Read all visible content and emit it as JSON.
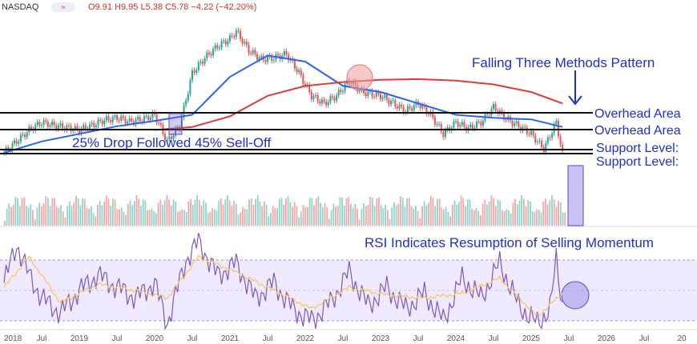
{
  "header": {
    "symbol": "NASDAQ",
    "interval_icon": "≈",
    "ohlc": {
      "open": "9.91",
      "high": "9.95",
      "low": "5.38",
      "close": "5.78",
      "change": "−4.22 (−42.20%)"
    }
  },
  "chart_data": [
    {
      "type": "candlestick",
      "title": "",
      "x_ticks": [
        "2018",
        "Jul",
        "2019",
        "Jul",
        "2020",
        "Jul",
        "2021",
        "Jul",
        "2022",
        "Jul",
        "2023",
        "Jul",
        "2024",
        "Jul",
        "2025",
        "Jul",
        "2026",
        "Jul",
        "20"
      ],
      "series": [
        {
          "values": [
            [
              "2018-01",
              6.0
            ],
            [
              "2018-03",
              7.5
            ],
            [
              "2018-05",
              9.0
            ],
            [
              "2018-07",
              10.0
            ],
            [
              "2018-09",
              9.6
            ],
            [
              "2018-11",
              9.3
            ],
            [
              "2019-01",
              9.0
            ],
            [
              "2019-03",
              9.6
            ],
            [
              "2019-05",
              10.3
            ],
            [
              "2019-07",
              10.6
            ],
            [
              "2019-09",
              10.1
            ],
            [
              "2019-11",
              10.4
            ],
            [
              "2020-01",
              11.0
            ],
            [
              "2020-03",
              7.5
            ],
            [
              "2020-05",
              9.5
            ],
            [
              "2020-07",
              16.5
            ],
            [
              "2020-09",
              18.5
            ],
            [
              "2020-11",
              20.0
            ],
            [
              "2021-01",
              21.0
            ],
            [
              "2021-02",
              22.0
            ],
            [
              "2021-04",
              19.5
            ],
            [
              "2021-06",
              18.3
            ],
            [
              "2021-08",
              18.5
            ],
            [
              "2021-10",
              19.0
            ],
            [
              "2021-12",
              16.5
            ],
            [
              "2022-02",
              13.5
            ],
            [
              "2022-04",
              12.5
            ],
            [
              "2022-06",
              13.5
            ],
            [
              "2022-08",
              15.5
            ],
            [
              "2022-10",
              14.0
            ],
            [
              "2023-01",
              13.5
            ],
            [
              "2023-03",
              12.5
            ],
            [
              "2023-05",
              11.5
            ],
            [
              "2023-07",
              12.5
            ],
            [
              "2023-09",
              11.0
            ],
            [
              "2023-11",
              8.5
            ],
            [
              "2024-01",
              10.0
            ],
            [
              "2024-03",
              9.2
            ],
            [
              "2024-05",
              10.0
            ],
            [
              "2024-07",
              12.0
            ],
            [
              "2024-09",
              10.5
            ],
            [
              "2024-11",
              9.5
            ],
            [
              "2025-01",
              8.5
            ],
            [
              "2025-03",
              6.5
            ],
            [
              "2025-05",
              10.0
            ],
            [
              "2025-06",
              5.78
            ]
          ]
        }
      ],
      "moving_averages": [
        {
          "color": "#2962ff",
          "values": [
            [
              "2018-01",
              6.0
            ],
            [
              "2018-07",
              7.5
            ],
            [
              "2019-01",
              8.5
            ],
            [
              "2019-07",
              9.5
            ],
            [
              "2020-01",
              10.2
            ],
            [
              "2020-07",
              11.0
            ],
            [
              "2021-01",
              16.0
            ],
            [
              "2021-07",
              18.8
            ],
            [
              "2022-01",
              18.0
            ],
            [
              "2022-07",
              14.8
            ],
            [
              "2023-01",
              14.0
            ],
            [
              "2023-07",
              12.5
            ],
            [
              "2024-01",
              11.0
            ],
            [
              "2024-07",
              10.6
            ],
            [
              "2025-01",
              10.4
            ],
            [
              "2025-06",
              9.4
            ]
          ]
        },
        {
          "color": "#e53935",
          "values": [
            [
              "2020-01",
              9.0
            ],
            [
              "2020-07",
              9.4
            ],
            [
              "2021-01",
              10.8
            ],
            [
              "2021-07",
              13.5
            ],
            [
              "2022-01",
              14.8
            ],
            [
              "2022-07",
              15.3
            ],
            [
              "2023-01",
              15.6
            ],
            [
              "2023-07",
              15.7
            ],
            [
              "2024-01",
              15.5
            ],
            [
              "2024-07",
              15.0
            ],
            [
              "2025-01",
              14.0
            ],
            [
              "2025-06",
              12.5
            ]
          ]
        }
      ],
      "horizontal_levels": [
        11.0,
        9.0,
        6.5,
        6.3
      ],
      "annotations": [
        "Falling Three Methods Pattern",
        "Overhead Area",
        "Overhead Area",
        "25% Drop Followed 45% Sell-Off",
        "Support Level:",
        "Support Level:"
      ]
    },
    {
      "type": "bar",
      "title": "",
      "note": "volume"
    },
    {
      "type": "line",
      "title": "",
      "annotation": "RSI Indicates Resumption of Selling Momentum",
      "series": [
        {
          "color": "#7e57c2",
          "values": [
            [
              "2018-01",
              55
            ],
            [
              "2018-03",
              80
            ],
            [
              "2018-05",
              60
            ],
            [
              "2018-07",
              45
            ],
            [
              "2018-10",
              35
            ],
            [
              "2019-01",
              50
            ],
            [
              "2019-04",
              60
            ],
            [
              "2019-07",
              52
            ],
            [
              "2019-10",
              45
            ],
            [
              "2020-01",
              55
            ],
            [
              "2020-03",
              28
            ],
            [
              "2020-06",
              70
            ],
            [
              "2020-08",
              82
            ],
            [
              "2020-11",
              60
            ],
            [
              "2021-02",
              68
            ],
            [
              "2021-05",
              45
            ],
            [
              "2021-08",
              55
            ],
            [
              "2021-11",
              38
            ],
            [
              "2022-02",
              30
            ],
            [
              "2022-05",
              42
            ],
            [
              "2022-08",
              62
            ],
            [
              "2022-11",
              40
            ],
            [
              "2023-02",
              52
            ],
            [
              "2023-05",
              38
            ],
            [
              "2023-08",
              48
            ],
            [
              "2023-11",
              30
            ],
            [
              "2024-02",
              58
            ],
            [
              "2024-05",
              45
            ],
            [
              "2024-08",
              68
            ],
            [
              "2024-11",
              40
            ],
            [
              "2025-02",
              28
            ],
            [
              "2025-04",
              38
            ],
            [
              "2025-05",
              70
            ],
            [
              "2025-06",
              40
            ]
          ]
        },
        {
          "color": "#f9c74f",
          "values": [
            [
              "2018-01",
              52
            ],
            [
              "2018-05",
              72
            ],
            [
              "2018-10",
              42
            ],
            [
              "2019-04",
              54
            ],
            [
              "2019-10",
              50
            ],
            [
              "2020-03",
              45
            ],
            [
              "2020-08",
              72
            ],
            [
              "2021-02",
              62
            ],
            [
              "2021-08",
              50
            ],
            [
              "2022-02",
              38
            ],
            [
              "2022-08",
              52
            ],
            [
              "2023-02",
              47
            ],
            [
              "2023-08",
              45
            ],
            [
              "2024-02",
              48
            ],
            [
              "2024-08",
              58
            ],
            [
              "2025-02",
              33
            ],
            [
              "2025-06",
              48
            ]
          ]
        }
      ],
      "levels": [
        70,
        50,
        30
      ]
    }
  ]
}
